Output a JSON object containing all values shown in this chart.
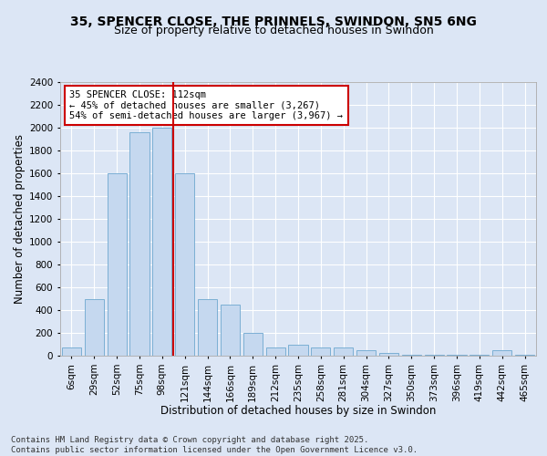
{
  "title_line1": "35, SPENCER CLOSE, THE PRINNELS, SWINDON, SN5 6NG",
  "title_line2": "Size of property relative to detached houses in Swindon",
  "xlabel": "Distribution of detached houses by size in Swindon",
  "ylabel": "Number of detached properties",
  "categories": [
    "6sqm",
    "29sqm",
    "52sqm",
    "75sqm",
    "98sqm",
    "121sqm",
    "144sqm",
    "166sqm",
    "189sqm",
    "212sqm",
    "235sqm",
    "258sqm",
    "281sqm",
    "304sqm",
    "327sqm",
    "350sqm",
    "373sqm",
    "396sqm",
    "419sqm",
    "442sqm",
    "465sqm"
  ],
  "values": [
    75,
    500,
    1600,
    1960,
    2000,
    1600,
    500,
    450,
    200,
    75,
    100,
    75,
    75,
    50,
    25,
    10,
    5,
    5,
    5,
    50,
    5
  ],
  "bar_color": "#c5d8ef",
  "bar_edge_color": "#7bafd4",
  "vline_x_index": 4,
  "vline_color": "#cc0000",
  "annotation_text": "35 SPENCER CLOSE: 112sqm\n← 45% of detached houses are smaller (3,267)\n54% of semi-detached houses are larger (3,967) →",
  "annotation_box_color": "#ffffff",
  "annotation_box_edge": "#cc0000",
  "background_color": "#dce6f5",
  "plot_bg_color": "#dce6f5",
  "grid_color": "#ffffff",
  "ylim": [
    0,
    2400
  ],
  "yticks": [
    0,
    200,
    400,
    600,
    800,
    1000,
    1200,
    1400,
    1600,
    1800,
    2000,
    2200,
    2400
  ],
  "footer_line1": "Contains HM Land Registry data © Crown copyright and database right 2025.",
  "footer_line2": "Contains public sector information licensed under the Open Government Licence v3.0.",
  "title_fontsize": 10,
  "subtitle_fontsize": 9,
  "axis_label_fontsize": 8.5,
  "tick_fontsize": 7.5,
  "annotation_fontsize": 7.5,
  "footer_fontsize": 6.5
}
